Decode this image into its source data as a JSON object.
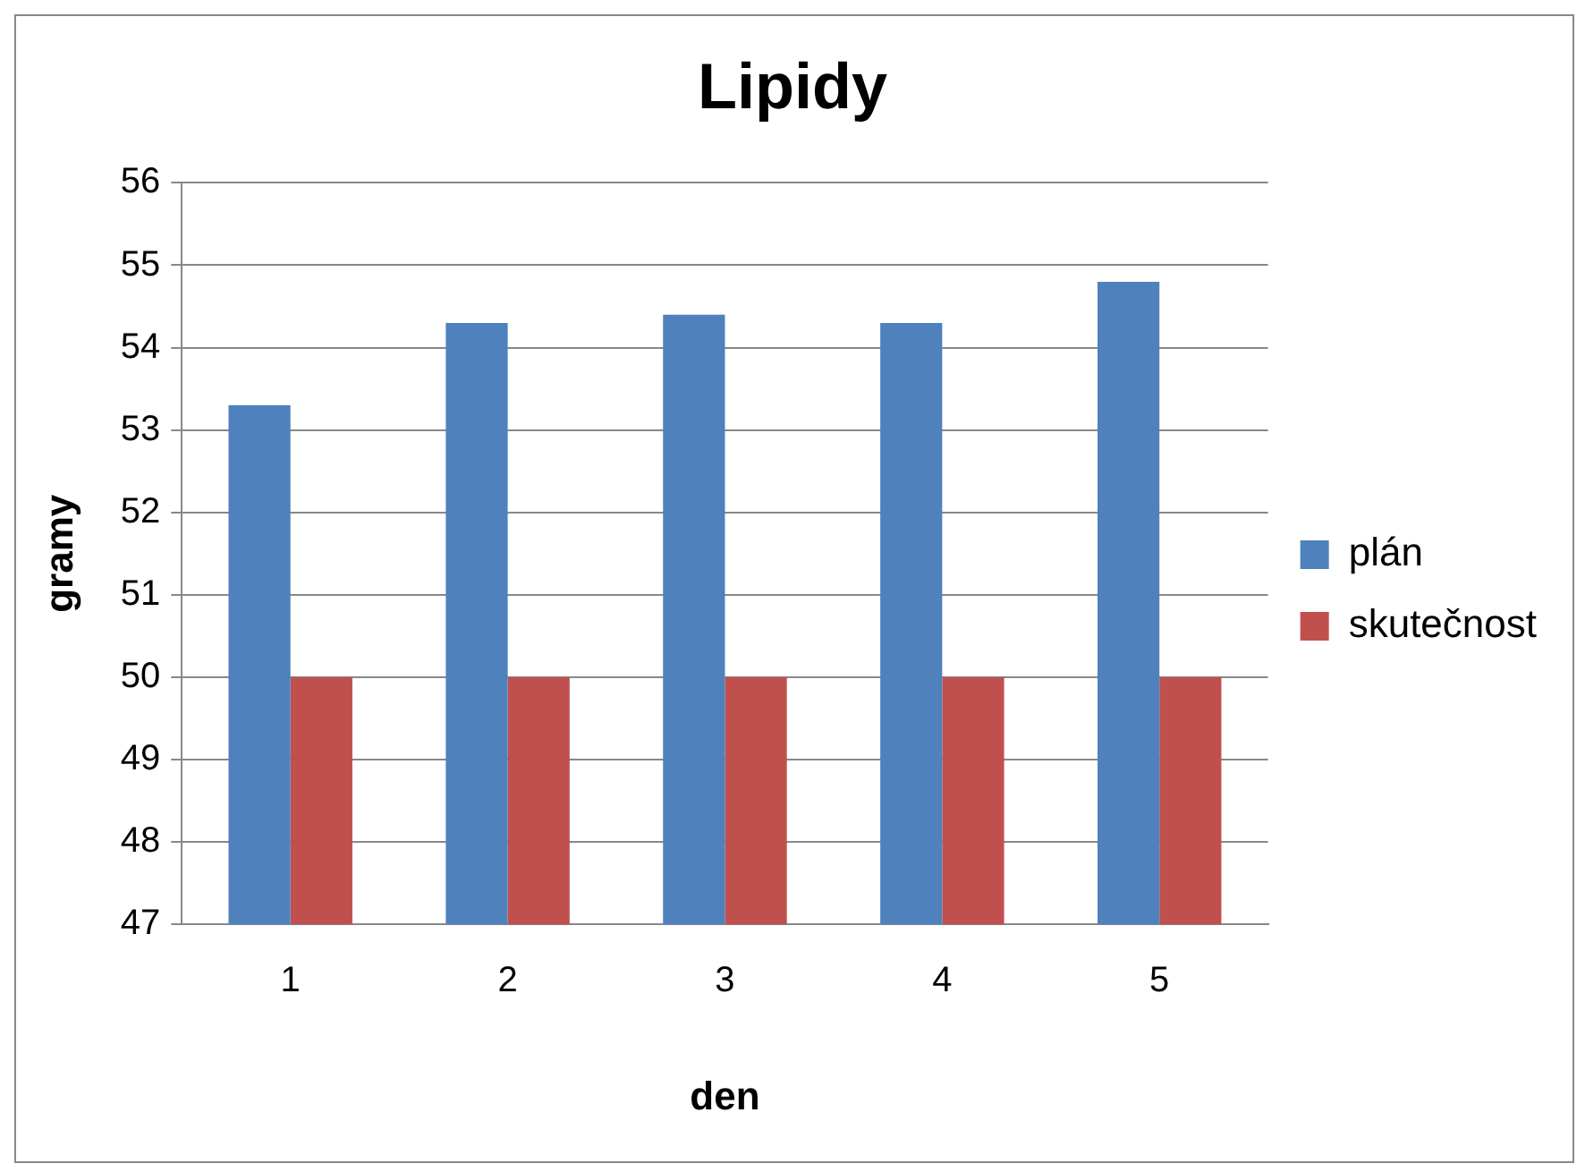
{
  "chart_data": {
    "type": "bar",
    "title": "Lipidy",
    "xlabel": "den",
    "ylabel": "gramy",
    "categories": [
      "1",
      "2",
      "3",
      "4",
      "5"
    ],
    "series": [
      {
        "name": "plán",
        "color": "#4f81bd",
        "values": [
          53.3,
          54.3,
          54.4,
          54.3,
          54.8
        ]
      },
      {
        "name": "skutečnost",
        "color": "#c0504d",
        "values": [
          50,
          50,
          50,
          50,
          50
        ]
      }
    ],
    "ylim": [
      47,
      56
    ],
    "yticks": [
      47,
      48,
      49,
      50,
      51,
      52,
      53,
      54,
      55,
      56
    ],
    "grid": "y",
    "legend": "right"
  }
}
